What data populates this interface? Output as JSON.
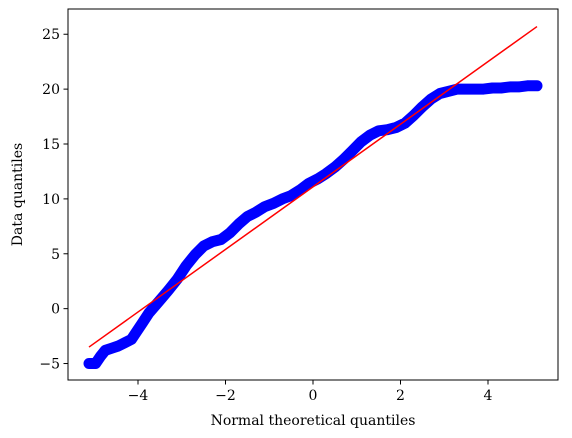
{
  "chart_data": {
    "type": "scatter",
    "title": "",
    "xlabel": "Normal theoretical quantiles",
    "ylabel": "Data quantiles",
    "xlim": [
      -5.6,
      5.6
    ],
    "ylim": [
      -6.5,
      27.3
    ],
    "xticks": [
      -4,
      -2,
      0,
      2,
      4
    ],
    "yticks": [
      -5,
      0,
      5,
      10,
      15,
      20,
      25
    ],
    "grid": false,
    "colors": {
      "points": "#0000ff",
      "line": "#ff0000",
      "axes": "#000000"
    },
    "reference_line": {
      "x": [
        -5.12,
        5.12
      ],
      "y": [
        -3.5,
        25.7
      ]
    },
    "series": [
      {
        "x": [
          -5.12,
          -4.97,
          -4.85,
          -4.75,
          -4.6,
          -4.45,
          -4.3,
          -4.15,
          -4.05,
          -3.9,
          -3.75,
          -3.6,
          -3.45,
          -3.3,
          -3.1,
          -2.9,
          -2.7,
          -2.5,
          -2.3,
          -2.1,
          -1.9,
          -1.7,
          -1.5,
          -1.3,
          -1.1,
          -0.9,
          -0.7,
          -0.5,
          -0.3,
          -0.1,
          0.1,
          0.3,
          0.5,
          0.7,
          0.9,
          1.1,
          1.3,
          1.5,
          1.7,
          1.9,
          2.1,
          2.3,
          2.5,
          2.7,
          2.9,
          3.1,
          3.3,
          3.5,
          3.7,
          3.9,
          4.1,
          4.3,
          4.5,
          4.7,
          4.9,
          5.12
        ],
        "y": [
          -5.0,
          -5.0,
          -4.3,
          -3.8,
          -3.6,
          -3.4,
          -3.1,
          -2.8,
          -2.2,
          -1.3,
          -0.4,
          0.3,
          1.0,
          1.7,
          2.7,
          3.9,
          4.9,
          5.7,
          6.1,
          6.3,
          6.9,
          7.7,
          8.4,
          8.8,
          9.3,
          9.6,
          10.0,
          10.3,
          10.8,
          11.4,
          11.8,
          12.3,
          12.9,
          13.6,
          14.4,
          15.2,
          15.8,
          16.2,
          16.3,
          16.5,
          16.9,
          17.6,
          18.4,
          19.1,
          19.6,
          19.8,
          20.0,
          20.0,
          20.0,
          20.0,
          20.1,
          20.1,
          20.2,
          20.2,
          20.3,
          20.3
        ]
      }
    ]
  }
}
